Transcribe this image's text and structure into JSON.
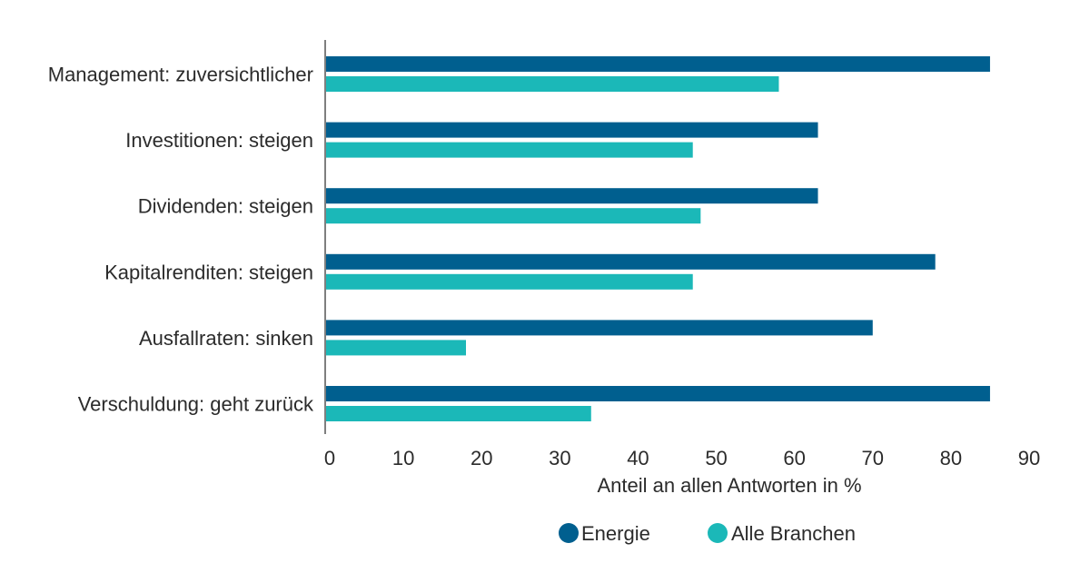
{
  "chart_data": {
    "type": "bar",
    "orientation": "horizontal",
    "categories": [
      "Management: zuversichtlicher",
      "Investitionen: steigen",
      "Dividenden: steigen",
      "Kapitalrenditen: steigen",
      "Ausfallraten: sinken",
      "Verschuldung: geht zurück"
    ],
    "series": [
      {
        "name": "Energie",
        "color": "#005f8f",
        "values": [
          85,
          63,
          63,
          78,
          70,
          85
        ]
      },
      {
        "name": "Alle Branchen",
        "color": "#1bb8b8",
        "values": [
          58,
          47,
          48,
          47,
          18,
          34
        ]
      }
    ],
    "xlabel": "Anteil an allen Antworten in %",
    "ylabel": "",
    "xlim": [
      0,
      90
    ],
    "xticks": [
      0,
      10,
      20,
      30,
      40,
      50,
      60,
      70,
      80,
      90
    ],
    "grid": false,
    "legend_position": "bottom"
  }
}
